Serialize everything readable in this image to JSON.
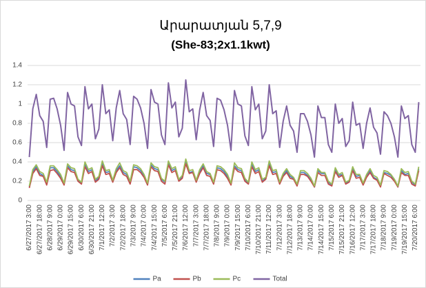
{
  "chart_data": {
    "type": "line",
    "title": "Արարատյան 5,7,9",
    "subtitle": "(She-83;2x1.1kwt)",
    "categories": [
      "6/27/2017 3:00",
      null,
      null,
      "6/27/2017 18:00",
      null,
      null,
      "6/28/2017 9:00",
      null,
      null,
      "6/29/2017 0:00",
      null,
      null,
      "6/29/2017 15:00",
      null,
      null,
      "6/30/2017 6:00",
      null,
      null,
      "6/30/2017 21:00",
      null,
      null,
      "7/1/2017 12:00",
      null,
      null,
      "7/2/2017 3:00",
      null,
      null,
      "7/2/2017 18:00",
      null,
      null,
      "7/3/2017 9:00",
      null,
      null,
      "7/4/2017 0:00",
      null,
      null,
      "7/4/2017 15:00",
      null,
      null,
      "7/5/2017 6:00",
      null,
      null,
      "7/5/2017 21:00",
      null,
      null,
      "7/6/2017 12:00",
      null,
      null,
      "7/7/2017 3:00",
      null,
      null,
      "7/7/2017 18:00",
      null,
      null,
      "7/8/2017 9:00",
      null,
      null,
      "7/9/2017 0:00",
      null,
      null,
      "7/9/2017 15:00",
      null,
      null,
      "7/10/2017 6:00",
      null,
      null,
      "7/10/2017 21:00",
      null,
      null,
      "7/11/2017 12:00",
      null,
      null,
      "7/12/2017 3:00",
      null,
      null,
      "7/12/2017 18:00",
      null,
      null,
      "7/13/2017 9:00",
      null,
      null,
      "7/14/2017 0:00",
      null,
      null,
      "7/14/2017 15:00",
      null,
      null,
      "7/15/2017 6:00",
      null,
      null,
      "7/15/2017 21:00",
      null,
      null,
      "7/16/2017 12:00",
      null,
      null,
      "7/17/2017 3:00",
      null,
      null,
      "7/17/2017 18:00",
      null,
      null,
      "7/18/2017 9:00",
      null,
      null,
      "7/19/2017 0:00",
      null,
      null,
      "7/19/2017 15:00",
      null,
      null,
      "7/20/2017 6:00",
      null
    ],
    "series": [
      {
        "name": "Pa",
        "color": "#4f81bd",
        "values": [
          0.14,
          0.3,
          0.35,
          0.28,
          0.26,
          0.18,
          0.34,
          0.34,
          0.3,
          0.25,
          0.17,
          0.36,
          0.32,
          0.31,
          0.21,
          0.18,
          0.38,
          0.3,
          0.32,
          0.2,
          0.24,
          0.38,
          0.29,
          0.3,
          0.2,
          0.31,
          0.36,
          0.29,
          0.27,
          0.19,
          0.35,
          0.34,
          0.31,
          0.26,
          0.17,
          0.37,
          0.33,
          0.32,
          0.22,
          0.19,
          0.39,
          0.31,
          0.33,
          0.21,
          0.24,
          0.4,
          0.29,
          0.3,
          0.2,
          0.3,
          0.36,
          0.28,
          0.27,
          0.18,
          0.34,
          0.33,
          0.3,
          0.25,
          0.17,
          0.36,
          0.32,
          0.31,
          0.21,
          0.18,
          0.38,
          0.3,
          0.32,
          0.2,
          0.23,
          0.38,
          0.29,
          0.3,
          0.18,
          0.26,
          0.31,
          0.25,
          0.23,
          0.16,
          0.29,
          0.29,
          0.26,
          0.22,
          0.14,
          0.31,
          0.28,
          0.28,
          0.19,
          0.16,
          0.32,
          0.26,
          0.27,
          0.18,
          0.2,
          0.33,
          0.25,
          0.26,
          0.17,
          0.26,
          0.31,
          0.24,
          0.22,
          0.15,
          0.29,
          0.28,
          0.26,
          0.21,
          0.14,
          0.31,
          0.27,
          0.28,
          0.19,
          0.16,
          0.33
        ]
      },
      {
        "name": "Pb",
        "color": "#c0504d",
        "values": [
          0.13,
          0.28,
          0.33,
          0.26,
          0.25,
          0.16,
          0.31,
          0.32,
          0.28,
          0.23,
          0.16,
          0.34,
          0.3,
          0.29,
          0.2,
          0.17,
          0.35,
          0.28,
          0.3,
          0.19,
          0.22,
          0.36,
          0.27,
          0.28,
          0.19,
          0.29,
          0.34,
          0.27,
          0.25,
          0.17,
          0.32,
          0.32,
          0.29,
          0.24,
          0.16,
          0.35,
          0.31,
          0.3,
          0.2,
          0.17,
          0.37,
          0.29,
          0.31,
          0.2,
          0.23,
          0.38,
          0.28,
          0.29,
          0.19,
          0.28,
          0.34,
          0.26,
          0.25,
          0.17,
          0.32,
          0.31,
          0.28,
          0.23,
          0.16,
          0.34,
          0.3,
          0.29,
          0.2,
          0.17,
          0.35,
          0.28,
          0.3,
          0.19,
          0.22,
          0.36,
          0.27,
          0.28,
          0.17,
          0.25,
          0.29,
          0.23,
          0.22,
          0.15,
          0.27,
          0.27,
          0.25,
          0.2,
          0.14,
          0.29,
          0.26,
          0.26,
          0.17,
          0.15,
          0.3,
          0.24,
          0.26,
          0.17,
          0.19,
          0.31,
          0.23,
          0.24,
          0.16,
          0.24,
          0.29,
          0.23,
          0.21,
          0.14,
          0.28,
          0.26,
          0.24,
          0.2,
          0.14,
          0.29,
          0.26,
          0.26,
          0.17,
          0.15,
          0.31
        ]
      },
      {
        "name": "Pc",
        "color": "#9bbb59",
        "values": [
          0.15,
          0.32,
          0.37,
          0.3,
          0.28,
          0.19,
          0.36,
          0.36,
          0.32,
          0.27,
          0.18,
          0.38,
          0.34,
          0.33,
          0.22,
          0.19,
          0.4,
          0.32,
          0.34,
          0.22,
          0.25,
          0.41,
          0.31,
          0.32,
          0.21,
          0.33,
          0.39,
          0.31,
          0.29,
          0.2,
          0.37,
          0.36,
          0.33,
          0.27,
          0.18,
          0.39,
          0.35,
          0.34,
          0.23,
          0.2,
          0.41,
          0.33,
          0.35,
          0.22,
          0.26,
          0.43,
          0.31,
          0.32,
          0.21,
          0.32,
          0.38,
          0.3,
          0.28,
          0.19,
          0.36,
          0.35,
          0.32,
          0.27,
          0.18,
          0.39,
          0.34,
          0.33,
          0.23,
          0.19,
          0.4,
          0.32,
          0.34,
          0.22,
          0.24,
          0.41,
          0.31,
          0.32,
          0.19,
          0.28,
          0.33,
          0.27,
          0.24,
          0.17,
          0.31,
          0.31,
          0.28,
          0.23,
          0.15,
          0.33,
          0.29,
          0.29,
          0.2,
          0.17,
          0.34,
          0.27,
          0.29,
          0.19,
          0.21,
          0.35,
          0.27,
          0.27,
          0.18,
          0.27,
          0.33,
          0.26,
          0.24,
          0.16,
          0.31,
          0.3,
          0.27,
          0.22,
          0.15,
          0.33,
          0.29,
          0.3,
          0.2,
          0.17,
          0.35
        ]
      },
      {
        "name": "Total",
        "color": "#8064a2",
        "values": [
          0.45,
          0.95,
          1.1,
          0.88,
          0.82,
          0.55,
          1.05,
          1.06,
          0.95,
          0.78,
          0.52,
          1.12,
          1.0,
          0.98,
          0.66,
          0.57,
          1.18,
          0.95,
          1.0,
          0.64,
          0.74,
          1.2,
          0.9,
          0.94,
          0.62,
          0.96,
          1.14,
          0.9,
          0.84,
          0.58,
          1.08,
          1.05,
          0.96,
          0.8,
          0.54,
          1.15,
          1.02,
          1.0,
          0.68,
          0.58,
          1.22,
          0.96,
          1.02,
          0.66,
          0.75,
          1.25,
          0.92,
          0.95,
          0.63,
          0.94,
          1.12,
          0.88,
          0.83,
          0.56,
          1.06,
          1.04,
          0.94,
          0.78,
          0.52,
          1.14,
          1.0,
          0.98,
          0.67,
          0.57,
          1.18,
          0.94,
          1.0,
          0.64,
          0.72,
          1.2,
          0.9,
          0.93,
          0.55,
          0.82,
          0.98,
          0.78,
          0.72,
          0.5,
          0.9,
          0.9,
          0.82,
          0.68,
          0.45,
          0.98,
          0.86,
          0.86,
          0.58,
          0.5,
          1.0,
          0.8,
          0.85,
          0.56,
          0.62,
          1.02,
          0.78,
          0.8,
          0.54,
          0.8,
          0.96,
          0.76,
          0.7,
          0.48,
          0.92,
          0.88,
          0.8,
          0.66,
          0.45,
          0.98,
          0.85,
          0.88,
          0.58,
          0.5,
          1.02
        ]
      }
    ],
    "ylim": [
      0,
      1.4
    ],
    "yticks": [
      0,
      0.2,
      0.4,
      0.6,
      0.8,
      1,
      1.2,
      1.4
    ],
    "grid": true,
    "legend": "bottom"
  }
}
